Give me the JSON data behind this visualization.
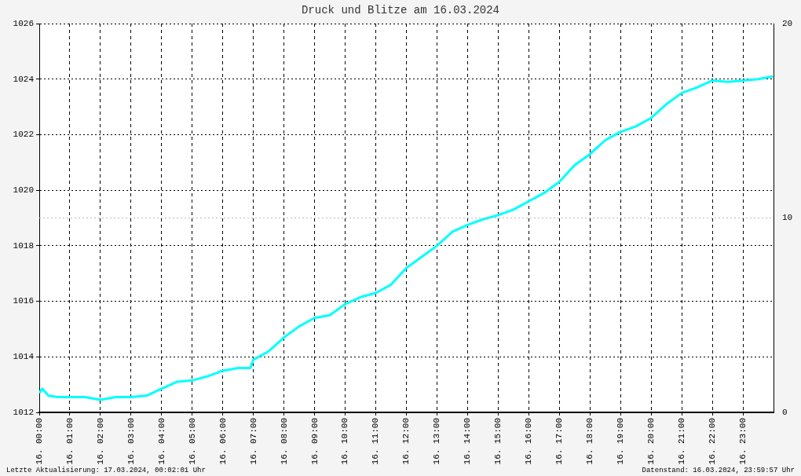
{
  "chart_data": {
    "type": "line",
    "title": "Druck und Blitze am 16.03.2024",
    "x": [
      "2024-03-16T00:00",
      "2024-03-16T00:06",
      "2024-03-16T00:18",
      "2024-03-16T00:36",
      "2024-03-16T01:00",
      "2024-03-16T01:30",
      "2024-03-16T02:00",
      "2024-03-16T02:30",
      "2024-03-16T03:00",
      "2024-03-16T03:30",
      "2024-03-16T04:00",
      "2024-03-16T04:30",
      "2024-03-16T05:00",
      "2024-03-16T05:30",
      "2024-03-16T06:00",
      "2024-03-16T06:30",
      "2024-03-16T06:54",
      "2024-03-16T07:00",
      "2024-03-16T07:30",
      "2024-03-16T08:00",
      "2024-03-16T08:30",
      "2024-03-16T09:00",
      "2024-03-16T09:30",
      "2024-03-16T10:00",
      "2024-03-16T10:30",
      "2024-03-16T11:00",
      "2024-03-16T11:30",
      "2024-03-16T12:00",
      "2024-03-16T12:30",
      "2024-03-16T13:00",
      "2024-03-16T13:30",
      "2024-03-16T14:00",
      "2024-03-16T14:30",
      "2024-03-16T15:00",
      "2024-03-16T15:30",
      "2024-03-16T16:00",
      "2024-03-16T16:30",
      "2024-03-16T17:00",
      "2024-03-16T17:30",
      "2024-03-16T18:00",
      "2024-03-16T18:30",
      "2024-03-16T19:00",
      "2024-03-16T19:30",
      "2024-03-16T20:00",
      "2024-03-16T20:30",
      "2024-03-16T21:00",
      "2024-03-16T21:30",
      "2024-03-16T22:00",
      "2024-03-16T22:30",
      "2024-03-16T23:00",
      "2024-03-16T23:30",
      "2024-03-16T23:59"
    ],
    "series": [
      {
        "color": "#00ffff",
        "values": [
          1012.7,
          1012.85,
          1012.6,
          1012.55,
          1012.55,
          1012.55,
          1012.45,
          1012.55,
          1012.55,
          1012.6,
          1012.85,
          1013.1,
          1013.15,
          1013.3,
          1013.5,
          1013.6,
          1013.6,
          1013.9,
          1014.2,
          1014.7,
          1015.1,
          1015.4,
          1015.5,
          1015.9,
          1016.15,
          1016.3,
          1016.6,
          1017.2,
          1017.6,
          1018.0,
          1018.5,
          1018.75,
          1018.95,
          1019.1,
          1019.3,
          1019.6,
          1019.9,
          1020.3,
          1020.9,
          1021.3,
          1021.8,
          1022.1,
          1022.3,
          1022.6,
          1023.1,
          1023.5,
          1023.7,
          1023.95,
          1023.9,
          1023.95,
          1024.0,
          1024.1
        ]
      }
    ],
    "xlim": [
      "2024-03-16T00:00",
      "2024-03-17T00:00"
    ],
    "xticks": [
      {
        "value": "2024-03-16T00:00",
        "label": "16. 00:00"
      },
      {
        "value": "2024-03-16T01:00",
        "label": "16. 01:00"
      },
      {
        "value": "2024-03-16T02:00",
        "label": "16. 02:00"
      },
      {
        "value": "2024-03-16T03:00",
        "label": "16. 03:00"
      },
      {
        "value": "2024-03-16T04:00",
        "label": "16. 04:00"
      },
      {
        "value": "2024-03-16T05:00",
        "label": "16. 05:00"
      },
      {
        "value": "2024-03-16T06:00",
        "label": "16. 06:00"
      },
      {
        "value": "2024-03-16T07:00",
        "label": "16. 07:00"
      },
      {
        "value": "2024-03-16T08:00",
        "label": "16. 08:00"
      },
      {
        "value": "2024-03-16T09:00",
        "label": "16. 09:00"
      },
      {
        "value": "2024-03-16T10:00",
        "label": "16. 10:00"
      },
      {
        "value": "2024-03-16T11:00",
        "label": "16. 11:00"
      },
      {
        "value": "2024-03-16T12:00",
        "label": "16. 12:00"
      },
      {
        "value": "2024-03-16T13:00",
        "label": "16. 13:00"
      },
      {
        "value": "2024-03-16T14:00",
        "label": "16. 14:00"
      },
      {
        "value": "2024-03-16T15:00",
        "label": "16. 15:00"
      },
      {
        "value": "2024-03-16T16:00",
        "label": "16. 16:00"
      },
      {
        "value": "2024-03-16T17:00",
        "label": "16. 17:00"
      },
      {
        "value": "2024-03-16T18:00",
        "label": "16. 18:00"
      },
      {
        "value": "2024-03-16T19:00",
        "label": "16. 19:00"
      },
      {
        "value": "2024-03-16T20:00",
        "label": "16. 20:00"
      },
      {
        "value": "2024-03-16T21:00",
        "label": "16. 21:00"
      },
      {
        "value": "2024-03-16T22:00",
        "label": "16. 22:00"
      },
      {
        "value": "2024-03-16T23:00",
        "label": "16. 23:00"
      }
    ],
    "ylim": [
      1012,
      1026
    ],
    "yticks": [
      1012,
      1014,
      1016,
      1018,
      1020,
      1022,
      1024,
      1026
    ],
    "y2lim": [
      0,
      20
    ],
    "y2ticks": [
      0,
      10,
      20
    ],
    "ref_lines": [
      {
        "axis": "y2",
        "value": 10,
        "color": "#bbbbbb",
        "line_style": "dotted"
      }
    ],
    "grid": true,
    "legend": false,
    "line_style": "solid",
    "annotations": [
      "Letzte Aktualisierung: 17.03.2024, 00:02:01 Uhr",
      "Datenstand: 16.03.2024, 23:59:57 Uhr"
    ]
  }
}
